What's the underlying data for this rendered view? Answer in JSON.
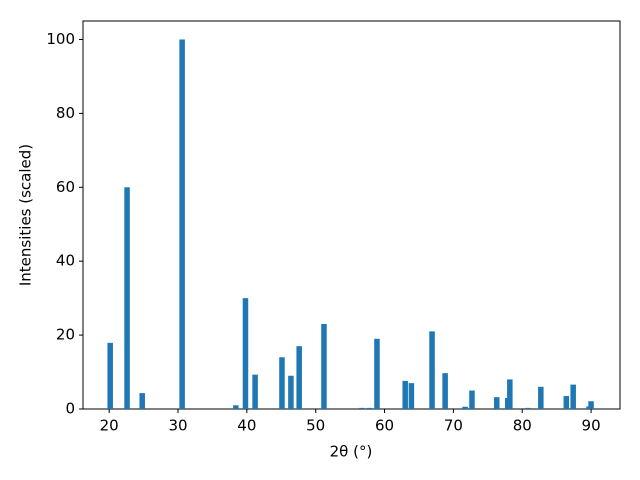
{
  "chart_data": {
    "type": "bar",
    "xlabel": "2θ (°)",
    "ylabel": "Intensities (scaled)",
    "x": [
      20.15,
      22.6,
      24.8,
      30.6,
      38.4,
      39.8,
      41.2,
      45.1,
      46.4,
      47.6,
      51.2,
      56.7,
      57.8,
      58.9,
      63.0,
      63.9,
      66.9,
      68.8,
      71.7,
      72.7,
      76.3,
      77.9,
      78.2,
      80.8,
      82.7,
      86.4,
      87.4,
      89.7,
      90.0
    ],
    "values": [
      17.9,
      60,
      4.3,
      100,
      1,
      30,
      9.3,
      14,
      9,
      17,
      23,
      0.3,
      0.3,
      19,
      7.6,
      7,
      21,
      9.7,
      0.6,
      5,
      3.2,
      3,
      8,
      0.3,
      6,
      3.5,
      6.6,
      0.7,
      2.1
    ],
    "bar_width": 0.8,
    "color": "#1f77b4",
    "xlim": [
      16.2,
      94.2
    ],
    "xticks": [
      20,
      30,
      40,
      50,
      60,
      70,
      80,
      90
    ],
    "ylim": [
      0,
      105
    ],
    "yticks": [
      0,
      20,
      40,
      60,
      80,
      100
    ]
  }
}
